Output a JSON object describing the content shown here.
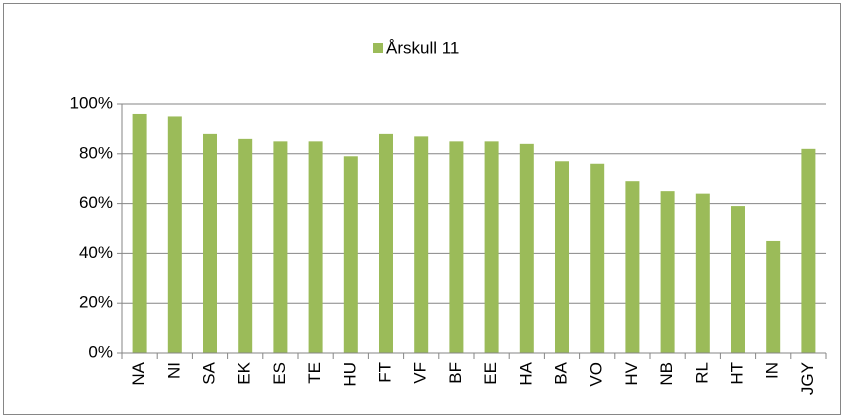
{
  "chart_data": {
    "type": "bar",
    "categories": [
      "NA",
      "NI",
      "SA",
      "EK",
      "ES",
      "TE",
      "HU",
      "FT",
      "VF",
      "BF",
      "EE",
      "HA",
      "BA",
      "VO",
      "HV",
      "NB",
      "RL",
      "HT",
      "IN",
      "JGY"
    ],
    "series": [
      {
        "name": "Årskull 11",
        "color": "#9bbb59",
        "values": [
          96,
          95,
          88,
          86,
          85,
          85,
          79,
          88,
          87,
          85,
          85,
          84,
          77,
          76,
          69,
          65,
          64,
          59,
          45,
          82
        ]
      }
    ],
    "ylim": [
      0,
      100
    ],
    "yticks": [
      {
        "value": 0,
        "label": "0%"
      },
      {
        "value": 20,
        "label": "20%"
      },
      {
        "value": 40,
        "label": "40%"
      },
      {
        "value": 60,
        "label": "60%"
      },
      {
        "value": 80,
        "label": "80%"
      },
      {
        "value": 100,
        "label": "100%"
      }
    ],
    "grid": true,
    "legend": "top"
  }
}
